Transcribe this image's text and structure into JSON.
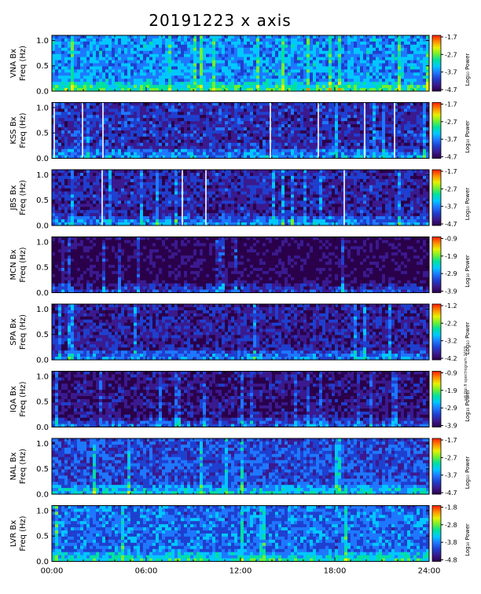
{
  "page": {
    "title": "20191223  x axis",
    "side_note": "sdi.fmi.fi spectrogram 2019"
  },
  "colors": {
    "background": "#ffffff",
    "colormap": [
      "#2a004a",
      "#3a1a8f",
      "#1f3fcf",
      "#1e78ff",
      "#00c8ff",
      "#00e0a0",
      "#70f030",
      "#e8f000",
      "#ff8c00",
      "#ff1a00"
    ]
  },
  "chart_data": [
    {
      "type": "heatmap",
      "station": "VNA",
      "ylabel_top": "VNA Bx",
      "ylabel_bottom": "Freq (Hz)",
      "cbar_ticks": [
        "-1.7",
        "-2.7",
        "-3.7",
        "-4.7"
      ],
      "cbar_label": "Log₁₀ Power",
      "level": 0.42,
      "white_lines": []
    },
    {
      "type": "heatmap",
      "station": "KSS",
      "ylabel_top": "KSS Bx",
      "ylabel_bottom": "Freq (Hz)",
      "cbar_ticks": [
        "-1.7",
        "-2.7",
        "-3.7",
        "-4.7"
      ],
      "cbar_label": "Log₁₀ Power",
      "level": 0.22,
      "white_lines": [
        0.15,
        1.95,
        3.25,
        13.9,
        16.95,
        19.9,
        21.8
      ]
    },
    {
      "type": "heatmap",
      "station": "JBS",
      "ylabel_top": "JBS Bx",
      "ylabel_bottom": "Freq (Hz)",
      "cbar_ticks": [
        "-1.7",
        "-2.7",
        "-3.7",
        "-4.7"
      ],
      "cbar_label": "Log₁₀ Power",
      "level": 0.2,
      "white_lines": [
        3.2,
        8.3,
        9.8,
        18.6
      ]
    },
    {
      "type": "heatmap",
      "station": "MCN",
      "ylabel_top": "MCN Bx",
      "ylabel_bottom": "Freq (Hz)",
      "cbar_ticks": [
        "-0.9",
        "-1.9",
        "-2.9",
        "-3.9"
      ],
      "cbar_label": "Log₁₀ Power",
      "level": 0.05,
      "white_lines": []
    },
    {
      "type": "heatmap",
      "station": "SPA",
      "ylabel_top": "SPA Bx",
      "ylabel_bottom": "Freq (Hz)",
      "cbar_ticks": [
        "-1.2",
        "-2.2",
        "-3.2",
        "-4.2"
      ],
      "cbar_label": "Log₁₀ Power",
      "level": 0.18,
      "white_lines": []
    },
    {
      "type": "heatmap",
      "station": "IQA",
      "ylabel_top": "IQA Bx",
      "ylabel_bottom": "Freq (Hz)",
      "cbar_ticks": [
        "-0.9",
        "-1.9",
        "-2.9",
        "-3.9"
      ],
      "cbar_label": "Log₁₀ Power",
      "level": 0.12,
      "white_lines": []
    },
    {
      "type": "heatmap",
      "station": "NAL",
      "ylabel_top": "NAL Bx",
      "ylabel_bottom": "Freq (Hz)",
      "cbar_ticks": [
        "-1.7",
        "-2.7",
        "-3.7",
        "-4.7"
      ],
      "cbar_label": "Log₁₀ Power",
      "level": 0.3,
      "white_lines": []
    },
    {
      "type": "heatmap",
      "station": "LVR",
      "ylabel_top": "LVR Bx",
      "ylabel_bottom": "Freq (Hz)",
      "cbar_ticks": [
        "-1.8",
        "-2.8",
        "-3.8",
        "-4.8"
      ],
      "cbar_label": "Log₁₀ Power",
      "level": 0.36,
      "white_lines": []
    }
  ],
  "axes": {
    "yticks": [
      "1.0",
      "0.5",
      "0.0"
    ],
    "ylim": [
      0,
      1.1
    ],
    "xlim": [
      0,
      24
    ],
    "xticks": [
      "00:00",
      "06:00",
      "12:00",
      "18:00",
      "24:00"
    ]
  }
}
